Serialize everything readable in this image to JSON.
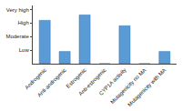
{
  "chart_data": {
    "type": "bar",
    "categories": [
      "Androgenic",
      "Anti-androgenic",
      "Estrogenic",
      "Anti-estrogenic",
      "CYP1A activity",
      "Mutagenicity no MA",
      "Mutagenicity with MA"
    ],
    "values": [
      3.2,
      0.9,
      3.6,
      0,
      2.8,
      0,
      0.9
    ],
    "color": "#5b9bd5",
    "ylim": [
      0,
      4.3
    ],
    "yticks": [
      {
        "value": 1,
        "label": "Low"
      },
      {
        "value": 2,
        "label": "Moderate"
      },
      {
        "value": 3,
        "label": "High"
      },
      {
        "value": 4,
        "label": "Very high"
      }
    ],
    "grid": false
  }
}
